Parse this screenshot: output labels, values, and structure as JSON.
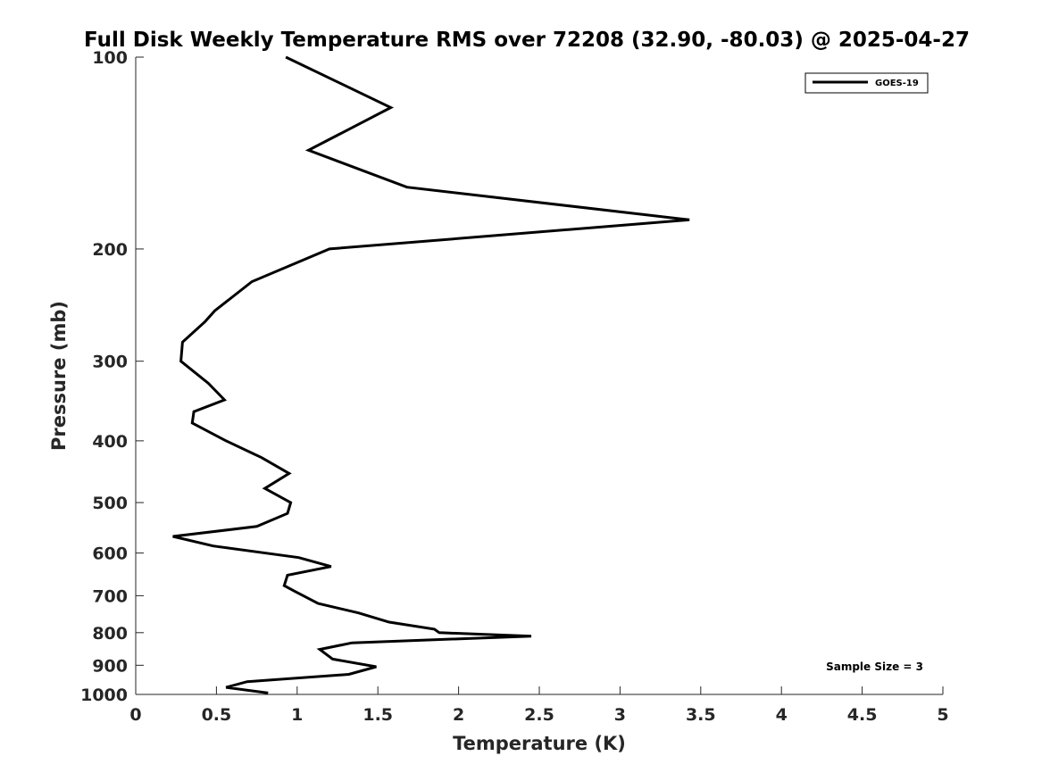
{
  "chart_data": {
    "type": "line",
    "title": "Full Disk Weekly Temperature RMS over 72208 (32.90, -80.03) @ 2025-04-27",
    "xlabel": "Temperature (K)",
    "ylabel": "Pressure (mb)",
    "xlim": [
      0,
      5
    ],
    "ylim": [
      100,
      1000
    ],
    "y_scale": "log",
    "y_reversed": true,
    "x_ticks": [
      "0",
      "0.5",
      "1",
      "1.5",
      "2",
      "2.5",
      "3",
      "3.5",
      "4",
      "4.5",
      "5"
    ],
    "y_ticks": [
      "100",
      "200",
      "300",
      "400",
      "500",
      "600",
      "700",
      "800",
      "900",
      "1000"
    ],
    "grid": false,
    "legend": {
      "position": "top-right",
      "entries": [
        "GOES-19"
      ]
    },
    "annotation": "Sample Size = 3",
    "line_color": "#000000",
    "series": [
      {
        "name": "GOES-19",
        "x": [
          0.93,
          1.58,
          1.07,
          1.68,
          3.43,
          1.2,
          0.72,
          0.49,
          0.43,
          0.29,
          0.28,
          0.45,
          0.55,
          0.36,
          0.35,
          0.56,
          0.78,
          0.95,
          0.8,
          0.96,
          0.94,
          0.75,
          0.23,
          0.48,
          1.01,
          1.21,
          0.94,
          0.92,
          0.99,
          1.13,
          1.38,
          1.57,
          1.85,
          1.88,
          2.45,
          1.34,
          1.14,
          1.22,
          1.49,
          1.32,
          0.69,
          0.56,
          0.82
        ],
        "y": [
          100,
          120,
          140,
          160,
          180,
          200,
          225,
          250,
          260,
          280,
          300,
          325,
          345,
          360,
          375,
          400,
          425,
          450,
          475,
          500,
          520,
          545,
          565,
          585,
          610,
          630,
          650,
          675,
          690,
          720,
          745,
          770,
          790,
          800,
          810,
          830,
          850,
          880,
          905,
          930,
          955,
          975,
          995
        ]
      }
    ]
  }
}
